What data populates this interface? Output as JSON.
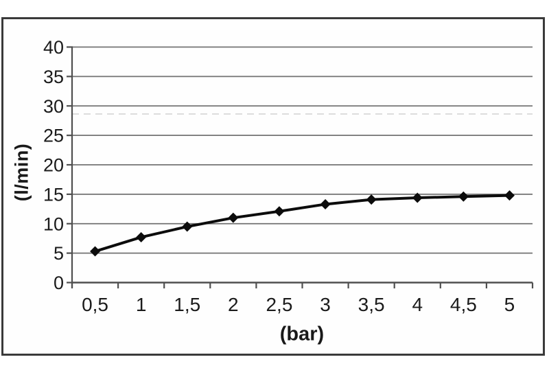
{
  "chart_data": {
    "type": "line",
    "title": "",
    "xlabel": "(bar)",
    "ylabel": "(l/min)",
    "categories": [
      "0,5",
      "1",
      "1,5",
      "2",
      "2,5",
      "3",
      "3,5",
      "4",
      "4,5",
      "5"
    ],
    "values": [
      5.3,
      7.7,
      9.5,
      11,
      12.1,
      13.3,
      14.1,
      14.4,
      14.6,
      14.8
    ],
    "ylim": [
      0,
      40
    ],
    "yticks": [
      "0",
      "5",
      "10",
      "15",
      "20",
      "25",
      "30",
      "35",
      "40"
    ],
    "grid": "horizontal",
    "legend": "none",
    "marker": "diamond",
    "colors": {
      "series": "#0c0c0c",
      "gridline": "#727272",
      "axis": "#4f4f4f",
      "text": "#1b1b1b",
      "frame_border": "#3a3a3a",
      "background": "#ffffff"
    }
  }
}
